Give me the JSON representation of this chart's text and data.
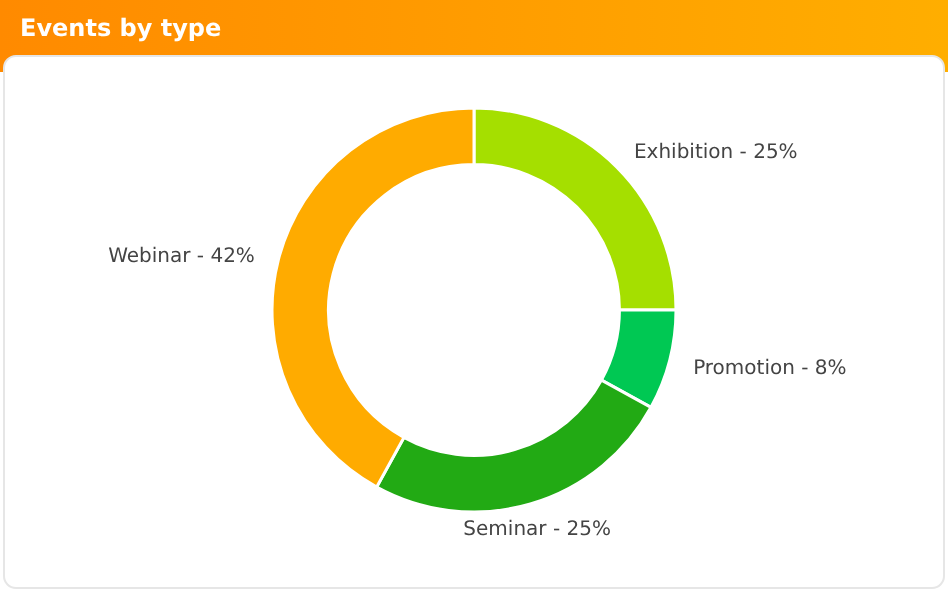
{
  "chart_data": {
    "type": "donut",
    "title": "Events by type",
    "categories": [
      "Exhibition - 25%",
      "Promotion - 8%",
      "Seminar - 25%",
      "Webinar - 42%"
    ],
    "values": [
      25,
      8,
      25,
      42
    ],
    "colors": [
      "#a5df00",
      "#00c853",
      "#22aa14",
      "#ffab00"
    ],
    "legend": false
  }
}
